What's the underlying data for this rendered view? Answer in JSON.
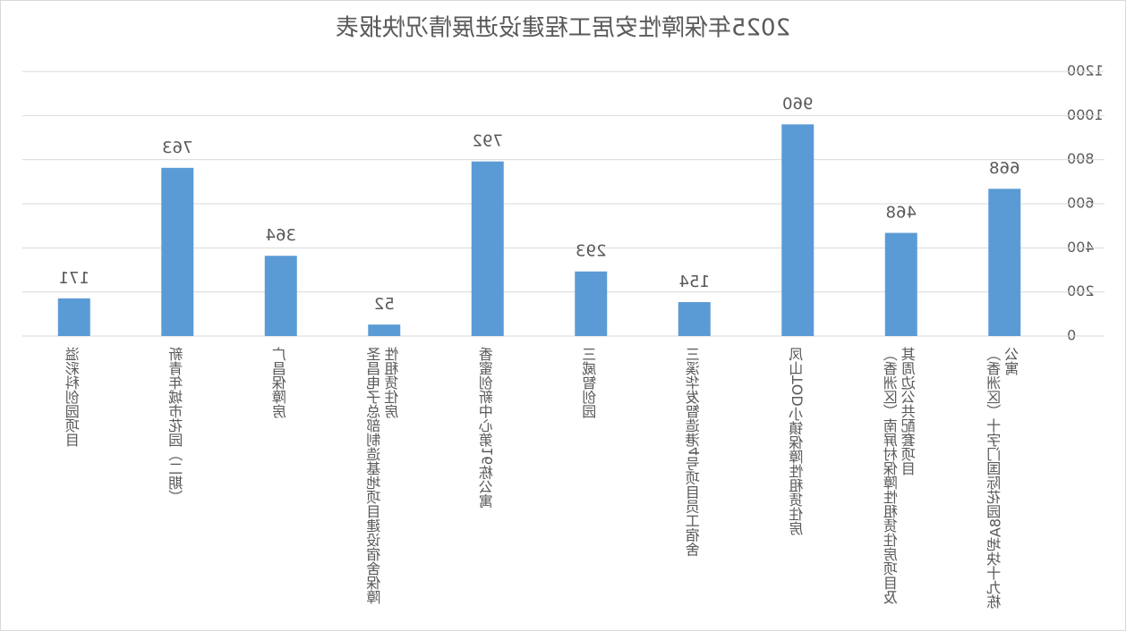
{
  "chart_data": {
    "type": "bar",
    "title": "2025年保障性安居工程建设进展情况快报表",
    "categories": [
      "（香洲区）十字门国际花园8A地块十九栋公寓",
      "（香洲区）南屏村保障性租赁住房项目及其周边公共配套项目",
      "凤山TOD小镇保障性租赁住房",
      "三溪华发智造港4号项目员工宿舍",
      "三威智创园",
      "香蜜创新中心第16栋公寓",
      "圣昌电子总部制造基地项目建设宿舍保障性租赁住房",
      "广昌保障房",
      "新青年城市花园（二期）",
      "溢彩科创园项目"
    ],
    "values": [
      668,
      468,
      960,
      154,
      293,
      792,
      52,
      364,
      763,
      171
    ],
    "color": "#5b9bd5",
    "ylim": [
      0,
      1200
    ],
    "yticks": [
      0,
      200,
      400,
      600,
      800,
      1000,
      1200
    ],
    "grid": true,
    "mirrored": true
  }
}
